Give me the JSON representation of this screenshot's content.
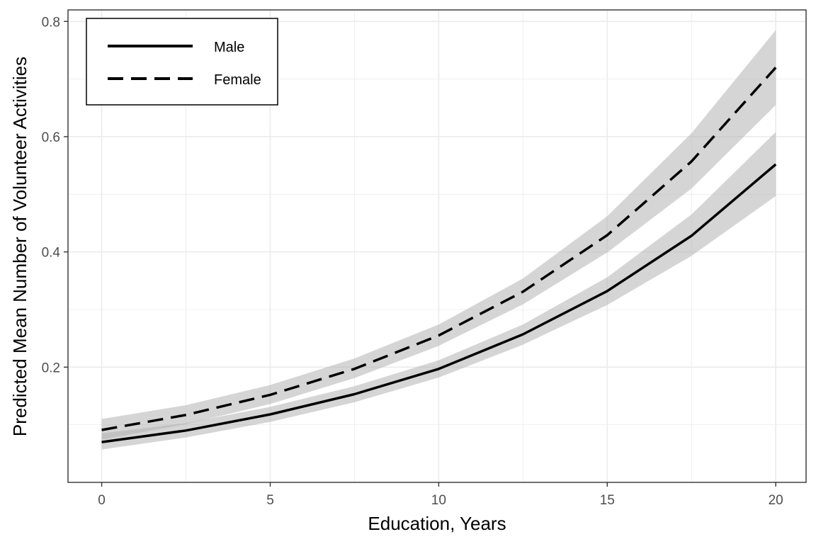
{
  "chart_data": {
    "type": "line",
    "title": "",
    "xlabel": "Education, Years",
    "ylabel": "Predicted Mean Number of Volunteer Activities",
    "xlim": [
      -1.0,
      20.9
    ],
    "ylim": [
      0.0,
      0.82
    ],
    "x_ticks": [
      0,
      5,
      10,
      15,
      20
    ],
    "x_tick_labels": [
      "0",
      "5",
      "10",
      "15",
      "20"
    ],
    "y_ticks": [
      0.2,
      0.4,
      0.6,
      0.8
    ],
    "y_tick_labels": [
      "0.2",
      "0.4",
      "0.6",
      "0.8"
    ],
    "grid": true,
    "legend_position": "top-left",
    "colors": {
      "line": "#000000",
      "band": "#b3b3b3",
      "grid": "#ebebeb",
      "frame": "#333333"
    },
    "x": [
      0,
      2.5,
      5,
      7.5,
      10,
      12.5,
      15,
      17.5,
      20
    ],
    "series": [
      {
        "name": "Male",
        "linestyle": "solid",
        "values": [
          0.07,
          0.09,
          0.118,
          0.153,
          0.197,
          0.257,
          0.332,
          0.428,
          0.552
        ],
        "lower": [
          0.057,
          0.078,
          0.105,
          0.139,
          0.182,
          0.239,
          0.308,
          0.393,
          0.497
        ],
        "upper": [
          0.085,
          0.103,
          0.131,
          0.167,
          0.212,
          0.274,
          0.356,
          0.465,
          0.608
        ]
      },
      {
        "name": "Female",
        "linestyle": "dashed",
        "values": [
          0.091,
          0.117,
          0.152,
          0.197,
          0.255,
          0.331,
          0.429,
          0.557,
          0.72
        ],
        "lower": [
          0.074,
          0.101,
          0.136,
          0.181,
          0.237,
          0.309,
          0.399,
          0.51,
          0.655
        ],
        "upper": [
          0.11,
          0.134,
          0.169,
          0.215,
          0.274,
          0.354,
          0.462,
          0.606,
          0.785
        ]
      }
    ]
  }
}
